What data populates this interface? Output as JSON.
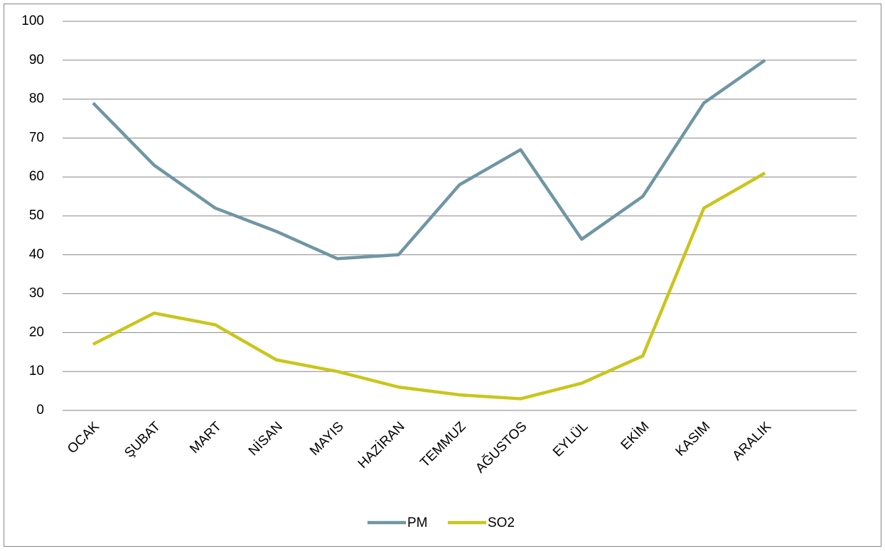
{
  "chart_data": {
    "type": "line",
    "categories": [
      "OCAK",
      "ŞUBAT",
      "MART",
      "NİSAN",
      "MAYIS",
      "HAZİRAN",
      "TEMMUZ",
      "AĞUSTOS",
      "EYLÜL",
      "EKİM",
      "KASIM",
      "ARALIK",
      null
    ],
    "series": [
      {
        "name": "PM",
        "color": "#6f96a3",
        "values": [
          79,
          63,
          52,
          46,
          39,
          40,
          58,
          67,
          44,
          55,
          79,
          90,
          null
        ]
      },
      {
        "name": "SO2",
        "color": "#c9c61c",
        "values": [
          17,
          25,
          22,
          13,
          10,
          6,
          4,
          3,
          7,
          14,
          52,
          61,
          null
        ]
      }
    ],
    "ylim": [
      0,
      100
    ],
    "yticks": [
      0,
      10,
      20,
      30,
      40,
      50,
      60,
      70,
      80,
      90,
      100
    ],
    "grid": true,
    "legend": "bottom"
  }
}
